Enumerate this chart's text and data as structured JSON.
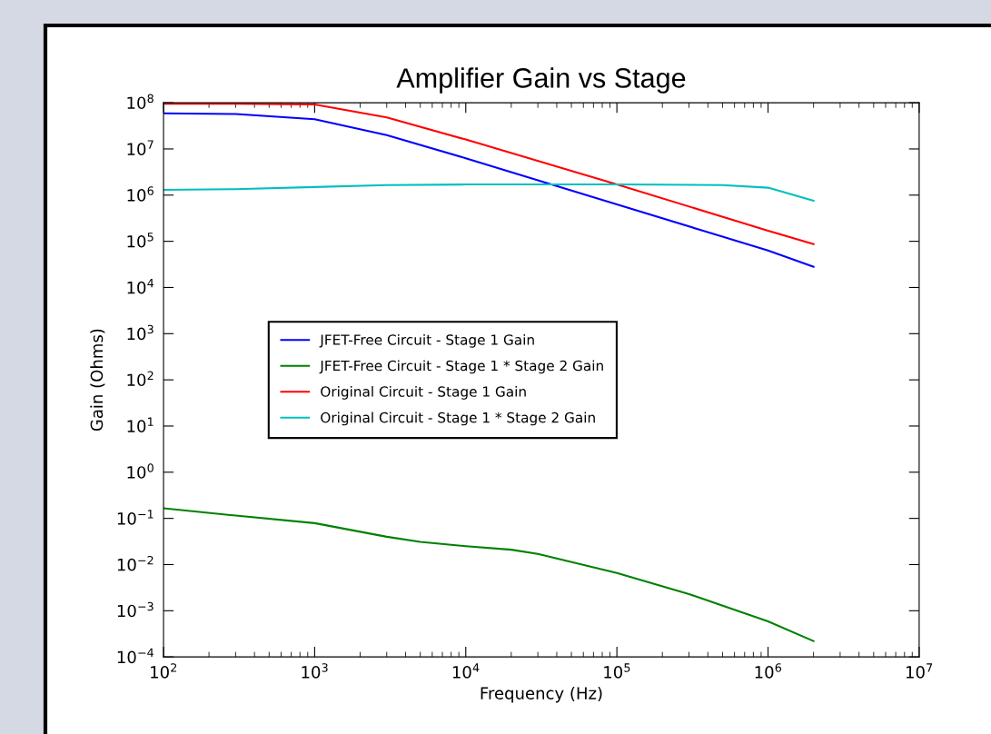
{
  "chart_data": {
    "type": "line",
    "title": "Amplifier Gain vs Stage",
    "xlabel": "Frequency (Hz)",
    "ylabel": "Gain (Ohms)",
    "log": "xy",
    "grid": false,
    "legend": "center left",
    "line_style": "solid",
    "marker": "none",
    "xlim": [
      100,
      10000000
    ],
    "ylim": [
      0.0001,
      100000000
    ],
    "xticks": [
      {
        "value": 100,
        "label": "10$^{2}$"
      },
      {
        "value": 1000,
        "label": "10$^{3}$"
      },
      {
        "value": 10000,
        "label": "10$^{4}$"
      },
      {
        "value": 100000,
        "label": "10$^{5}$"
      },
      {
        "value": 1000000,
        "label": "10$^{6}$"
      },
      {
        "value": 10000000,
        "label": "10$^{7}$"
      }
    ],
    "yticks": [
      {
        "value": 0.0001,
        "label": "10$^{−4}$"
      },
      {
        "value": 0.001,
        "label": "10$^{−3}$"
      },
      {
        "value": 0.01,
        "label": "10$^{−2}$"
      },
      {
        "value": 0.1,
        "label": "10$^{−1}$"
      },
      {
        "value": 1,
        "label": "10$^{0}$"
      },
      {
        "value": 10,
        "label": "10$^{1}$"
      },
      {
        "value": 100,
        "label": "10$^{2}$"
      },
      {
        "value": 1000,
        "label": "10$^{3}$"
      },
      {
        "value": 10000,
        "label": "10$^{4}$"
      },
      {
        "value": 100000,
        "label": "10$^{5}$"
      },
      {
        "value": 1000000,
        "label": "10$^{6}$"
      },
      {
        "value": 10000000,
        "label": "10$^{7}$"
      },
      {
        "value": 100000000,
        "label": "10$^{8}$"
      }
    ],
    "series": [
      {
        "name": "JFET-Free Circuit - Stage 1 Gain",
        "color": "#0000ff",
        "x": [
          100,
          300,
          1000,
          3000,
          10000,
          100000,
          1000000,
          2000000
        ],
        "values": [
          59000000,
          57000000,
          44000000,
          20000000,
          6300000,
          630000,
          63000,
          28000
        ]
      },
      {
        "name": "JFET-Free Circuit - Stage 1 * Stage 2 Gain",
        "color": "#008000",
        "x": [
          100,
          300,
          1000,
          3000,
          5000,
          10000,
          20000,
          30000,
          100000,
          300000,
          1000000,
          2000000
        ],
        "values": [
          0.166,
          0.115,
          0.079,
          0.04,
          0.031,
          0.025,
          0.021,
          0.017,
          0.0066,
          0.0023,
          0.00059,
          0.00022
        ]
      },
      {
        "name": "Original Circuit - Stage 1 Gain",
        "color": "#ff0000",
        "x": [
          100,
          300,
          1000,
          3000,
          10000,
          100000,
          1000000,
          2000000
        ],
        "values": [
          95000000,
          95000000,
          92000000,
          48000000,
          16000000,
          1700000,
          170000,
          87000
        ]
      },
      {
        "name": "Original Circuit - Stage 1 * Stage 2 Gain",
        "color": "#00bfbf",
        "x": [
          100,
          300,
          1000,
          3000,
          10000,
          100000,
          500000,
          1000000,
          2000000
        ],
        "values": [
          1300000,
          1350000,
          1500000,
          1650000,
          1700000,
          1700000,
          1650000,
          1450000,
          760000
        ]
      }
    ]
  }
}
